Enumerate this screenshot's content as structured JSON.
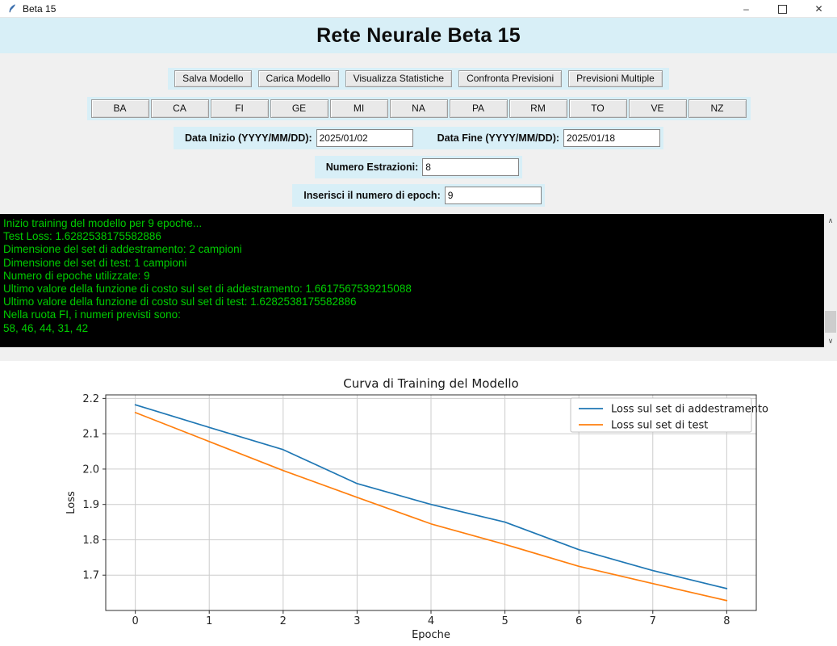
{
  "window": {
    "title": "Beta 15",
    "controls": {
      "minimize": "–",
      "maximize": "",
      "close": "✕"
    }
  },
  "header": {
    "title": "Rete Neurale Beta 15"
  },
  "toolbar": {
    "buttons": [
      "Salva Modello",
      "Carica Modello",
      "Visualizza Statistiche",
      "Confronta Previsioni",
      "Previsioni Multiple"
    ]
  },
  "wheels": {
    "buttons": [
      "BA",
      "CA",
      "FI",
      "GE",
      "MI",
      "NA",
      "PA",
      "RM",
      "TO",
      "VE",
      "NZ"
    ]
  },
  "form": {
    "data_inizio": {
      "label": "Data Inizio (YYYY/MM/DD):",
      "value": "2025/01/02"
    },
    "data_fine": {
      "label": "Data Fine (YYYY/MM/DD):",
      "value": "2025/01/18"
    },
    "numero_estrazioni": {
      "label": "Numero Estrazioni:",
      "value": "8"
    },
    "epoche": {
      "label": "Inserisci il numero di epoch:",
      "value": "9"
    }
  },
  "console": {
    "bg": "#000000",
    "text_color": "#00cc00",
    "lines": [
      "Inizio training del modello per 9 epoche...",
      "Test Loss: 1.6282538175582886",
      "Dimensione del set di addestramento: 2 campioni",
      "Dimensione del set di test: 1 campioni",
      "Numero di epoche utilizzate: 9",
      "Ultimo valore della funzione di costo sul set di addestramento: 1.6617567539215088",
      "Ultimo valore della funzione di costo sul set di test: 1.6282538175582886",
      "Nella ruota FI, i numeri previsti sono:",
      "58, 46, 44, 31, 42"
    ]
  },
  "chart_data": {
    "type": "line",
    "title": "Curva di Training del Modello",
    "xlabel": "Epoche",
    "ylabel": "Loss",
    "x": [
      0,
      1,
      2,
      3,
      4,
      5,
      6,
      7,
      8
    ],
    "series": [
      {
        "name": "Loss sul set di addestramento",
        "color": "#1f77b4",
        "values": [
          2.182,
          2.118,
          2.055,
          1.959,
          1.9,
          1.85,
          1.772,
          1.713,
          1.662
        ]
      },
      {
        "name": "Loss sul set di test",
        "color": "#ff7f0e",
        "values": [
          2.16,
          2.078,
          1.996,
          1.92,
          1.845,
          1.787,
          1.725,
          1.676,
          1.628
        ]
      }
    ],
    "xticks": [
      0,
      1,
      2,
      3,
      4,
      5,
      6,
      7,
      8
    ],
    "yticks": [
      1.7,
      1.8,
      1.9,
      2.0,
      2.1,
      2.2
    ],
    "xlim": [
      -0.4,
      8.4
    ],
    "ylim": [
      1.6,
      2.21
    ],
    "grid": true,
    "legend_position": "upper right"
  }
}
